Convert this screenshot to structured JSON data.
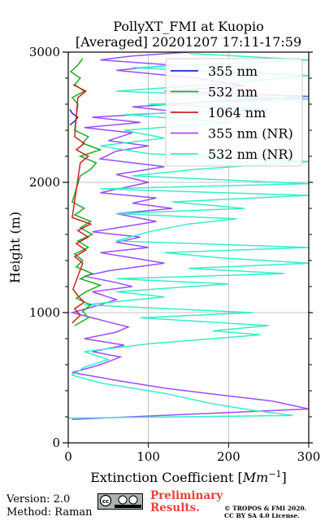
{
  "chart_data": {
    "type": "line",
    "title": "PollyXT_FMI at Kuopio",
    "subtitle": "[Averaged] 20201207 17:11-17:59",
    "xlabel": "Extinction Coefficient [Mm⁻¹]",
    "ylabel": "Height (m)",
    "xlim": [
      0,
      300
    ],
    "ylim": [
      0,
      3000
    ],
    "xticks": [
      "0",
      "100",
      "200",
      "300"
    ],
    "yticks": [
      "0",
      "1000",
      "2000",
      "3000"
    ],
    "grid": true,
    "legend_position": "top-right",
    "series": [
      {
        "name": "355 nm",
        "color": "#2222cc",
        "points": [
          [
            2,
            2440
          ],
          [
            8,
            2470
          ],
          [
            12,
            2500
          ],
          [
            5,
            2530
          ],
          [
            2,
            2560
          ]
        ]
      },
      {
        "name": "532 nm",
        "color": "#22aa22",
        "points": [
          [
            8,
            900
          ],
          [
            25,
            960
          ],
          [
            18,
            1010
          ],
          [
            28,
            1060
          ],
          [
            10,
            1110
          ],
          [
            22,
            1160
          ],
          [
            40,
            1210
          ],
          [
            15,
            1260
          ],
          [
            30,
            1300
          ],
          [
            10,
            1350
          ],
          [
            18,
            1400
          ],
          [
            8,
            1450
          ],
          [
            25,
            1500
          ],
          [
            12,
            1550
          ],
          [
            30,
            1600
          ],
          [
            15,
            1650
          ],
          [
            28,
            1700
          ],
          [
            8,
            1750
          ],
          [
            20,
            1800
          ],
          [
            5,
            1850
          ],
          [
            15,
            2050
          ],
          [
            28,
            2100
          ],
          [
            35,
            2150
          ],
          [
            15,
            2200
          ],
          [
            40,
            2250
          ],
          [
            18,
            2300
          ],
          [
            25,
            2350
          ],
          [
            8,
            2400
          ],
          [
            12,
            2600
          ],
          [
            5,
            2650
          ],
          [
            20,
            2700
          ],
          [
            8,
            2750
          ],
          [
            15,
            2800
          ],
          [
            3,
            2850
          ],
          [
            12,
            2900
          ],
          [
            18,
            2950
          ]
        ]
      },
      {
        "name": "1064 nm",
        "color": "#cc2222",
        "points": [
          [
            5,
            920
          ],
          [
            15,
            980
          ],
          [
            8,
            1030
          ],
          [
            20,
            1080
          ],
          [
            12,
            1130
          ],
          [
            6,
            1180
          ],
          [
            18,
            1380
          ],
          [
            8,
            1430
          ],
          [
            22,
            1480
          ],
          [
            10,
            1530
          ],
          [
            25,
            1580
          ],
          [
            12,
            1630
          ],
          [
            28,
            1680
          ],
          [
            5,
            1730
          ],
          [
            15,
            2150
          ],
          [
            25,
            2200
          ],
          [
            10,
            2250
          ],
          [
            20,
            2300
          ],
          [
            8,
            2350
          ],
          [
            12,
            2650
          ],
          [
            22,
            2700
          ],
          [
            6,
            2750
          ]
        ]
      },
      {
        "name": "355 nm (NR)",
        "color": "#9b4dff",
        "points": [
          [
            5,
            180
          ],
          [
            300,
            260
          ],
          [
            255,
            320
          ],
          [
            200,
            360
          ],
          [
            120,
            420
          ],
          [
            60,
            480
          ],
          [
            5,
            540
          ],
          [
            40,
            600
          ],
          [
            65,
            660
          ],
          [
            30,
            700
          ],
          [
            70,
            750
          ],
          [
            20,
            800
          ],
          [
            60,
            850
          ],
          [
            75,
            890
          ],
          [
            55,
            920
          ],
          [
            30,
            960
          ],
          [
            5,
            1000
          ],
          [
            40,
            1060
          ],
          [
            60,
            1100
          ],
          [
            30,
            1160
          ],
          [
            80,
            1200
          ],
          [
            60,
            1230
          ],
          [
            20,
            1280
          ],
          [
            50,
            1320
          ],
          [
            120,
            1380
          ],
          [
            80,
            1420
          ],
          [
            40,
            1460
          ],
          [
            100,
            1500
          ],
          [
            60,
            1540
          ],
          [
            90,
            1580
          ],
          [
            30,
            1620
          ],
          [
            70,
            1660
          ],
          [
            110,
            1700
          ],
          [
            60,
            1760
          ],
          [
            130,
            1800
          ],
          [
            80,
            1840
          ],
          [
            110,
            1880
          ],
          [
            40,
            1920
          ],
          [
            70,
            1960
          ],
          [
            100,
            2000
          ],
          [
            60,
            2060
          ],
          [
            120,
            2120
          ],
          [
            40,
            2180
          ],
          [
            60,
            2240
          ],
          [
            100,
            2280
          ],
          [
            50,
            2320
          ],
          [
            80,
            2380
          ],
          [
            20,
            2420
          ],
          [
            90,
            2460
          ],
          [
            30,
            2500
          ],
          [
            140,
            2540
          ],
          [
            80,
            2580
          ],
          [
            180,
            2620
          ],
          [
            300,
            2660
          ],
          [
            120,
            2700
          ],
          [
            220,
            2740
          ],
          [
            160,
            2800
          ],
          [
            60,
            2860
          ],
          [
            130,
            2900
          ],
          [
            40,
            2940
          ],
          [
            80,
            2970
          ],
          [
            150,
            3000
          ]
        ]
      },
      {
        "name": "532 nm (NR)",
        "color": "#33f0c8",
        "points": [
          [
            0,
            190
          ],
          [
            280,
            210
          ],
          [
            230,
            250
          ],
          [
            180,
            300
          ],
          [
            120,
            380
          ],
          [
            40,
            460
          ],
          [
            5,
            520
          ],
          [
            20,
            580
          ],
          [
            50,
            640
          ],
          [
            20,
            700
          ],
          [
            100,
            760
          ],
          [
            240,
            830
          ],
          [
            180,
            860
          ],
          [
            250,
            900
          ],
          [
            90,
            960
          ],
          [
            230,
            1000
          ],
          [
            20,
            1060
          ],
          [
            120,
            1120
          ],
          [
            60,
            1160
          ],
          [
            200,
            1220
          ],
          [
            60,
            1260
          ],
          [
            270,
            1300
          ],
          [
            150,
            1340
          ],
          [
            230,
            1360
          ],
          [
            300,
            1380
          ],
          [
            190,
            1420
          ],
          [
            120,
            1460
          ],
          [
            300,
            1500
          ],
          [
            60,
            1550
          ],
          [
            100,
            1620
          ],
          [
            150,
            1680
          ],
          [
            210,
            1720
          ],
          [
            60,
            1760
          ],
          [
            220,
            1800
          ],
          [
            130,
            1850
          ],
          [
            300,
            1900
          ],
          [
            40,
            1950
          ],
          [
            300,
            1990
          ],
          [
            80,
            2050
          ],
          [
            160,
            2100
          ],
          [
            300,
            2160
          ],
          [
            100,
            2220
          ],
          [
            40,
            2280
          ],
          [
            120,
            2340
          ],
          [
            70,
            2400
          ],
          [
            200,
            2460
          ],
          [
            70,
            2520
          ],
          [
            250,
            2560
          ],
          [
            100,
            2600
          ],
          [
            300,
            2640
          ],
          [
            60,
            2700
          ],
          [
            200,
            2760
          ],
          [
            300,
            2820
          ],
          [
            80,
            2880
          ],
          [
            300,
            2940
          ],
          [
            150,
            2990
          ]
        ]
      }
    ]
  },
  "footer": {
    "version": "Version: 2.0",
    "method": "Method: Raman",
    "preliminary_line1": "Preliminary",
    "preliminary_line2": "Results.",
    "copyright_line1": "© TROPOS & FMI 2020.",
    "copyright_line2": "CC BY SA 4.0 License."
  }
}
